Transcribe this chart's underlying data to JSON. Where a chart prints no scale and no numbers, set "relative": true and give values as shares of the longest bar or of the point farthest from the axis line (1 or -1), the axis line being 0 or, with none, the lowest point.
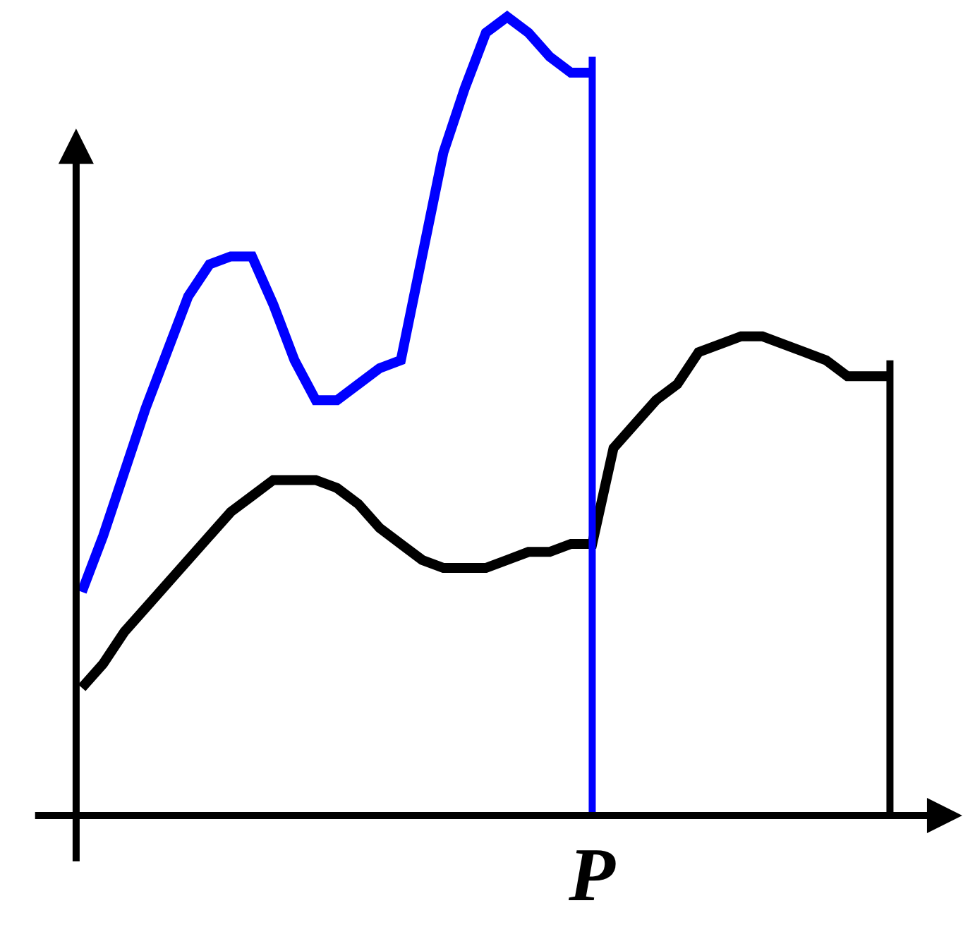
{
  "chart_data": {
    "type": "line",
    "relative": true,
    "categories": [
      null,
      null,
      null,
      null,
      null,
      null,
      null,
      null,
      null,
      null,
      null,
      null,
      null,
      null,
      null,
      null,
      null,
      null,
      null,
      null,
      null,
      null,
      null,
      null,
      null,
      null,
      null,
      null,
      null,
      null,
      null,
      null,
      null,
      null,
      null,
      null,
      null,
      null,
      null
    ],
    "series": [
      {
        "color": "#0000ff",
        "values": [
          0.28,
          0.35,
          0.43,
          0.51,
          0.58,
          0.65,
          0.69,
          0.7,
          0.7,
          0.64,
          0.57,
          0.52,
          0.52,
          0.54,
          0.56,
          0.57,
          0.7,
          0.83,
          0.91,
          0.98,
          1.0,
          0.98,
          0.95,
          0.93,
          0.93,
          null,
          null,
          null,
          null,
          null,
          null,
          null,
          null,
          null,
          null,
          null,
          null,
          null,
          null
        ]
      },
      {
        "color": "#000000",
        "values": [
          0.16,
          0.19,
          0.23,
          0.26,
          0.29,
          0.32,
          0.35,
          0.38,
          0.4,
          0.42,
          0.42,
          0.42,
          0.41,
          0.39,
          0.36,
          0.34,
          0.32,
          0.31,
          0.31,
          0.31,
          0.32,
          0.33,
          0.33,
          0.34,
          0.34,
          0.46,
          0.49,
          0.52,
          0.54,
          0.58,
          0.59,
          0.6,
          0.6,
          0.59,
          0.58,
          0.57,
          0.55,
          0.55,
          0.55
        ]
      }
    ],
    "annotations": [
      "P"
    ],
    "marker": "none",
    "line_style": "solid"
  }
}
